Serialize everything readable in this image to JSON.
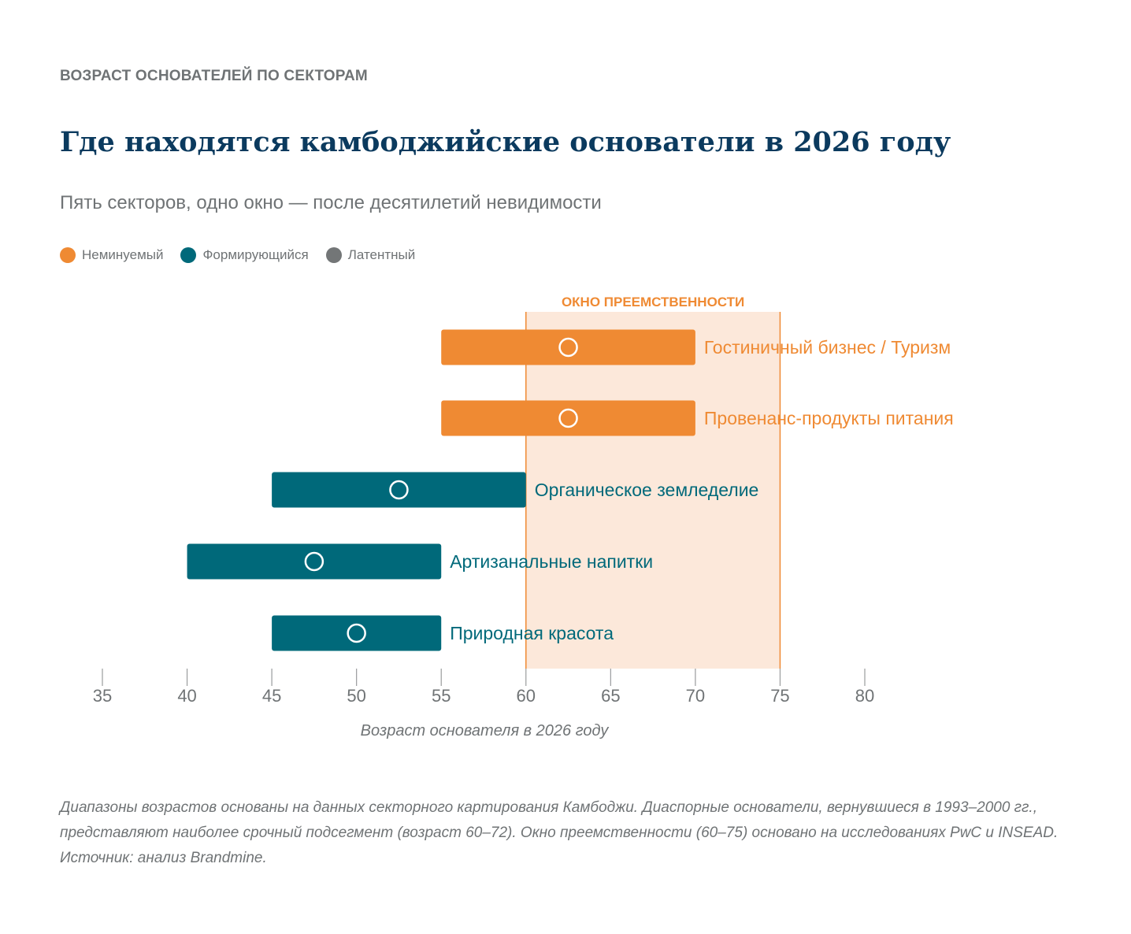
{
  "eyebrow": "ВОЗРАСТ ОСНОВАТЕЛЕЙ ПО СЕКТОРАМ",
  "title": "Где находятся камбоджийские основатели в 2026 году",
  "subtitle": "Пять секторов, одно окно — после десятилетий невидимости",
  "legend": [
    {
      "label": "Неминуемый",
      "color": "#ef8a33"
    },
    {
      "label": "Формирующийся",
      "color": "#00697a"
    },
    {
      "label": "Латентный",
      "color": "#737677"
    }
  ],
  "footnote": "Диапазоны возрастов основаны на данных секторного картирования Камбоджи. Диаспорные основатели, вернувшиеся в 1993–2000 гг., представляют наиболее срочный подсегмент (возраст 60–72). Окно преемственности (60–75) основано на исследованиях PwC и INSEAD. Источник: анализ Brandmine.",
  "chart_data": {
    "type": "range-bar",
    "xlabel": "Возраст основателя в 2026 году",
    "xlim": [
      35,
      80
    ],
    "xticks": [
      35,
      40,
      45,
      50,
      55,
      60,
      65,
      70,
      75,
      80
    ],
    "grid": false,
    "legend_position": "top-left",
    "window": {
      "label": "ОКНО ПРЕЕМСТВЕННОСТИ",
      "range": [
        60,
        75
      ],
      "color": "#fce8da",
      "line_color": "#ef8a33"
    },
    "series": [
      {
        "name": "Гостиничный бизнес / Туризм",
        "category": "Неминуемый",
        "min": 55,
        "max": 70,
        "marker": 62.5,
        "color": "#ef8a33"
      },
      {
        "name": "Провенанс-продукты питания",
        "category": "Неминуемый",
        "min": 55,
        "max": 70,
        "marker": 62.5,
        "color": "#ef8a33"
      },
      {
        "name": "Органическое земледелие",
        "category": "Формирующийся",
        "min": 45,
        "max": 60,
        "marker": 52.5,
        "color": "#00697a"
      },
      {
        "name": "Артизанальные напитки",
        "category": "Формирующийся",
        "min": 40,
        "max": 55,
        "marker": 47.5,
        "color": "#00697a"
      },
      {
        "name": "Природная красота",
        "category": "Формирующийся",
        "min": 45,
        "max": 55,
        "marker": 50,
        "color": "#00697a"
      }
    ]
  }
}
